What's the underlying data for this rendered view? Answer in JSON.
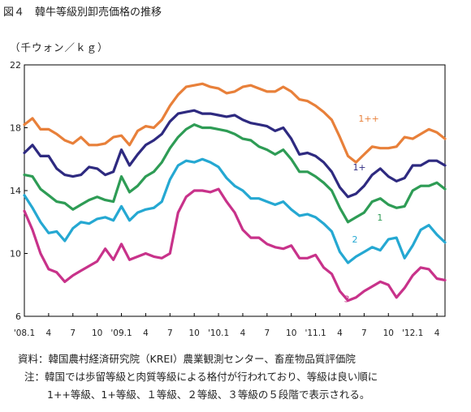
{
  "figure": {
    "title": "図４　韓牛等級別卸売価格の推移",
    "unit": "（千ウォン／ｋｇ）",
    "notes": [
      "資料：韓国農村経済研究院（KREI）農業観測センター、畜産物品質評価院",
      "注：韓国では歩留等級と肉質等級による格付が行われており、等級は良い順に",
      "1++等級、1+等級、１等級、２等級、３等級の５段階で表示される。"
    ]
  },
  "chart_data": {
    "type": "line",
    "ylim": [
      6,
      22
    ],
    "yticks": [
      6,
      10,
      14,
      18,
      22
    ],
    "xlim": [
      0,
      52
    ],
    "xticks": [
      {
        "x": 0,
        "label": "'08.1"
      },
      {
        "x": 3,
        "label": "4"
      },
      {
        "x": 6,
        "label": "7"
      },
      {
        "x": 9,
        "label": "10"
      },
      {
        "x": 12,
        "label": "'09.1"
      },
      {
        "x": 15,
        "label": "4"
      },
      {
        "x": 18,
        "label": "7"
      },
      {
        "x": 21,
        "label": "10"
      },
      {
        "x": 24,
        "label": "'10.1"
      },
      {
        "x": 27,
        "label": "4"
      },
      {
        "x": 30,
        "label": "7"
      },
      {
        "x": 33,
        "label": "10"
      },
      {
        "x": 36,
        "label": "'11.1"
      },
      {
        "x": 39,
        "label": "4"
      },
      {
        "x": 42,
        "label": "7"
      },
      {
        "x": 45,
        "label": "10"
      },
      {
        "x": 48,
        "label": "'12.1"
      },
      {
        "x": 51,
        "label": "4"
      }
    ],
    "series": [
      {
        "name": "1++",
        "color": "#E8803A",
        "label_at": [
          41.3,
          18.4
        ],
        "points": [
          [
            0,
            18.2
          ],
          [
            1,
            18.6
          ],
          [
            2,
            17.9
          ],
          [
            3,
            17.9
          ],
          [
            4,
            17.6
          ],
          [
            5,
            17.2
          ],
          [
            6,
            17.0
          ],
          [
            7,
            17.4
          ],
          [
            8,
            16.9
          ],
          [
            9,
            16.9
          ],
          [
            10,
            17.0
          ],
          [
            11,
            17.4
          ],
          [
            12,
            17.5
          ],
          [
            13,
            16.9
          ],
          [
            14,
            17.8
          ],
          [
            15,
            18.1
          ],
          [
            16,
            18.0
          ],
          [
            17,
            18.5
          ],
          [
            18,
            19.4
          ],
          [
            19,
            20.1
          ],
          [
            20,
            20.6
          ],
          [
            21,
            20.7
          ],
          [
            22,
            20.8
          ],
          [
            23,
            20.6
          ],
          [
            24,
            20.5
          ],
          [
            25,
            20.2
          ],
          [
            26,
            20.3
          ],
          [
            27,
            20.6
          ],
          [
            28,
            20.7
          ],
          [
            29,
            20.5
          ],
          [
            30,
            20.3
          ],
          [
            31,
            20.3
          ],
          [
            32,
            20.6
          ],
          [
            33,
            20.3
          ],
          [
            34,
            19.8
          ],
          [
            35,
            19.7
          ],
          [
            36,
            19.4
          ],
          [
            37,
            19.0
          ],
          [
            38,
            18.5
          ],
          [
            39,
            17.4
          ],
          [
            40,
            16.2
          ],
          [
            41,
            15.8
          ],
          [
            42,
            16.3
          ],
          [
            43,
            16.8
          ],
          [
            44,
            16.7
          ],
          [
            45,
            16.7
          ],
          [
            46,
            16.8
          ],
          [
            47,
            17.4
          ],
          [
            48,
            17.3
          ],
          [
            49,
            17.6
          ],
          [
            50,
            17.9
          ],
          [
            51,
            17.7
          ],
          [
            52,
            17.3
          ]
        ]
      },
      {
        "name": "1+",
        "color": "#2E2A80",
        "label_at": [
          40.6,
          15.3
        ],
        "points": [
          [
            0,
            16.4
          ],
          [
            1,
            16.9
          ],
          [
            2,
            16.2
          ],
          [
            3,
            16.2
          ],
          [
            4,
            15.4
          ],
          [
            5,
            15.0
          ],
          [
            6,
            14.9
          ],
          [
            7,
            15.0
          ],
          [
            8,
            15.5
          ],
          [
            9,
            15.4
          ],
          [
            10,
            15.0
          ],
          [
            11,
            15.2
          ],
          [
            12,
            16.6
          ],
          [
            13,
            15.6
          ],
          [
            14,
            16.3
          ],
          [
            15,
            16.9
          ],
          [
            16,
            17.2
          ],
          [
            17,
            17.6
          ],
          [
            18,
            18.4
          ],
          [
            19,
            18.9
          ],
          [
            20,
            19.0
          ],
          [
            21,
            19.1
          ],
          [
            22,
            18.9
          ],
          [
            23,
            18.9
          ],
          [
            24,
            18.8
          ],
          [
            25,
            18.7
          ],
          [
            26,
            18.8
          ],
          [
            27,
            18.5
          ],
          [
            28,
            18.3
          ],
          [
            29,
            18.2
          ],
          [
            30,
            18.1
          ],
          [
            31,
            17.8
          ],
          [
            32,
            18.0
          ],
          [
            33,
            17.3
          ],
          [
            34,
            16.3
          ],
          [
            35,
            16.4
          ],
          [
            36,
            16.2
          ],
          [
            37,
            15.8
          ],
          [
            38,
            15.2
          ],
          [
            39,
            14.2
          ],
          [
            40,
            13.6
          ],
          [
            41,
            13.8
          ],
          [
            42,
            14.3
          ],
          [
            43,
            15.0
          ],
          [
            44,
            15.4
          ],
          [
            45,
            14.9
          ],
          [
            46,
            14.6
          ],
          [
            47,
            14.8
          ],
          [
            48,
            15.6
          ],
          [
            49,
            15.6
          ],
          [
            50,
            15.9
          ],
          [
            51,
            15.9
          ],
          [
            52,
            15.6
          ]
        ]
      },
      {
        "name": "1",
        "color": "#2E9C55",
        "label_at": [
          43.6,
          12.1
        ],
        "points": [
          [
            0,
            15.0
          ],
          [
            1,
            14.9
          ],
          [
            2,
            14.1
          ],
          [
            3,
            13.7
          ],
          [
            4,
            13.3
          ],
          [
            5,
            13.2
          ],
          [
            6,
            12.8
          ],
          [
            7,
            13.1
          ],
          [
            8,
            13.4
          ],
          [
            9,
            13.6
          ],
          [
            10,
            13.4
          ],
          [
            11,
            13.3
          ],
          [
            12,
            14.9
          ],
          [
            13,
            13.9
          ],
          [
            14,
            14.3
          ],
          [
            15,
            14.9
          ],
          [
            16,
            15.2
          ],
          [
            17,
            15.8
          ],
          [
            18,
            16.7
          ],
          [
            19,
            17.4
          ],
          [
            20,
            17.9
          ],
          [
            21,
            18.2
          ],
          [
            22,
            18.0
          ],
          [
            23,
            18.0
          ],
          [
            24,
            17.9
          ],
          [
            25,
            17.8
          ],
          [
            26,
            17.6
          ],
          [
            27,
            17.3
          ],
          [
            28,
            17.2
          ],
          [
            29,
            16.8
          ],
          [
            30,
            16.6
          ],
          [
            31,
            16.3
          ],
          [
            32,
            16.6
          ],
          [
            33,
            16.0
          ],
          [
            34,
            15.2
          ],
          [
            35,
            15.2
          ],
          [
            36,
            14.9
          ],
          [
            37,
            14.5
          ],
          [
            38,
            14.0
          ],
          [
            39,
            12.9
          ],
          [
            40,
            12.0
          ],
          [
            41,
            12.3
          ],
          [
            42,
            12.6
          ],
          [
            43,
            13.3
          ],
          [
            44,
            13.5
          ],
          [
            45,
            13.1
          ],
          [
            46,
            12.9
          ],
          [
            47,
            13.0
          ],
          [
            48,
            14.0
          ],
          [
            49,
            14.3
          ],
          [
            50,
            14.3
          ],
          [
            51,
            14.5
          ],
          [
            52,
            14.1
          ]
        ]
      },
      {
        "name": "2",
        "color": "#25A8D2",
        "label_at": [
          40.5,
          10.7
        ],
        "points": [
          [
            0,
            13.7
          ],
          [
            1,
            12.9
          ],
          [
            2,
            12.0
          ],
          [
            3,
            11.3
          ],
          [
            4,
            11.4
          ],
          [
            5,
            10.8
          ],
          [
            6,
            11.6
          ],
          [
            7,
            12.0
          ],
          [
            8,
            11.9
          ],
          [
            9,
            12.2
          ],
          [
            10,
            12.3
          ],
          [
            11,
            12.1
          ],
          [
            12,
            13.0
          ],
          [
            13,
            12.1
          ],
          [
            14,
            12.6
          ],
          [
            15,
            12.8
          ],
          [
            16,
            12.9
          ],
          [
            17,
            13.3
          ],
          [
            18,
            14.7
          ],
          [
            19,
            15.6
          ],
          [
            20,
            15.9
          ],
          [
            21,
            15.8
          ],
          [
            22,
            16.0
          ],
          [
            23,
            15.8
          ],
          [
            24,
            15.5
          ],
          [
            25,
            14.8
          ],
          [
            26,
            14.3
          ],
          [
            27,
            14.0
          ],
          [
            28,
            13.5
          ],
          [
            29,
            13.5
          ],
          [
            30,
            13.3
          ],
          [
            31,
            13.1
          ],
          [
            32,
            13.3
          ],
          [
            33,
            12.8
          ],
          [
            34,
            12.4
          ],
          [
            35,
            12.5
          ],
          [
            36,
            12.3
          ],
          [
            37,
            11.9
          ],
          [
            38,
            11.4
          ],
          [
            39,
            10.1
          ],
          [
            40,
            9.4
          ],
          [
            41,
            9.8
          ],
          [
            42,
            10.1
          ],
          [
            43,
            10.4
          ],
          [
            44,
            10.2
          ],
          [
            45,
            10.9
          ],
          [
            46,
            11.0
          ],
          [
            47,
            9.7
          ],
          [
            48,
            10.5
          ],
          [
            49,
            11.5
          ],
          [
            50,
            11.8
          ],
          [
            51,
            11.2
          ],
          [
            52,
            10.7
          ]
        ]
      },
      {
        "name": "3",
        "color": "#C8328A",
        "label_at": [
          39.5,
          6.9
        ],
        "points": [
          [
            0,
            12.7
          ],
          [
            1,
            11.5
          ],
          [
            2,
            10.0
          ],
          [
            3,
            9.0
          ],
          [
            4,
            8.8
          ],
          [
            5,
            8.2
          ],
          [
            6,
            8.6
          ],
          [
            7,
            8.9
          ],
          [
            8,
            9.2
          ],
          [
            9,
            9.5
          ],
          [
            10,
            10.3
          ],
          [
            11,
            9.6
          ],
          [
            12,
            10.6
          ],
          [
            13,
            9.6
          ],
          [
            14,
            9.8
          ],
          [
            15,
            10.0
          ],
          [
            16,
            9.8
          ],
          [
            17,
            9.7
          ],
          [
            18,
            10.0
          ],
          [
            19,
            12.6
          ],
          [
            20,
            13.6
          ],
          [
            21,
            14.0
          ],
          [
            22,
            14.0
          ],
          [
            23,
            13.9
          ],
          [
            24,
            14.1
          ],
          [
            25,
            13.3
          ],
          [
            26,
            12.6
          ],
          [
            27,
            11.5
          ],
          [
            28,
            11.0
          ],
          [
            29,
            11.0
          ],
          [
            30,
            10.6
          ],
          [
            31,
            10.4
          ],
          [
            32,
            10.3
          ],
          [
            33,
            10.5
          ],
          [
            34,
            9.7
          ],
          [
            35,
            9.7
          ],
          [
            36,
            9.9
          ],
          [
            37,
            9.1
          ],
          [
            38,
            8.7
          ],
          [
            39,
            7.6
          ],
          [
            40,
            7.0
          ],
          [
            41,
            7.2
          ],
          [
            42,
            7.6
          ],
          [
            43,
            7.9
          ],
          [
            44,
            8.2
          ],
          [
            45,
            8.0
          ],
          [
            46,
            7.2
          ],
          [
            47,
            7.8
          ],
          [
            48,
            8.6
          ],
          [
            49,
            9.1
          ],
          [
            50,
            9.0
          ],
          [
            51,
            8.4
          ],
          [
            52,
            8.3
          ]
        ]
      }
    ]
  }
}
